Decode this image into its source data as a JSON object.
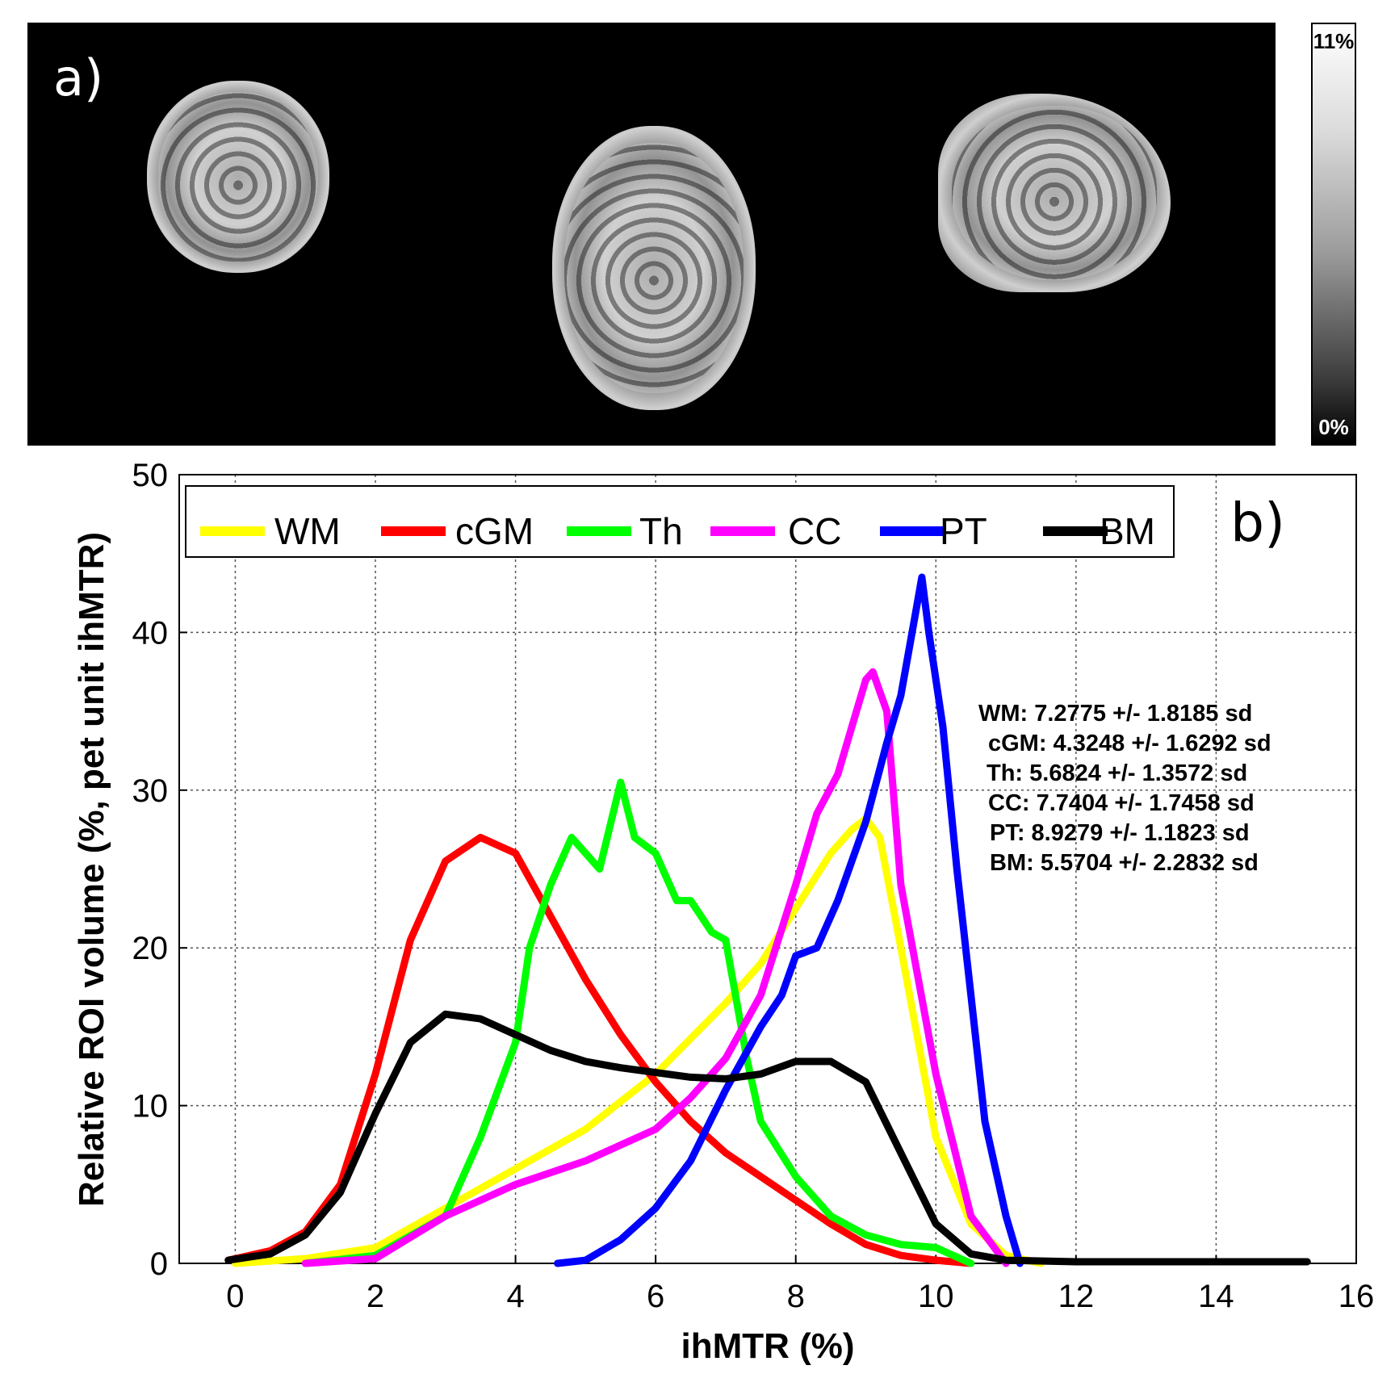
{
  "panel_a": {
    "label": "a)",
    "colorbar_max": "11%",
    "colorbar_min": "0%"
  },
  "chart_data": {
    "type": "line",
    "panel_label": "b)",
    "xlabel": "ihMTR (%)",
    "ylabel": "Relative ROI volume (%, pet unit ihMTR)",
    "xlim": [
      -0.8,
      16
    ],
    "ylim": [
      0,
      50
    ],
    "xticks": [
      0,
      2,
      4,
      6,
      8,
      10,
      12,
      14,
      16
    ],
    "yticks": [
      0,
      10,
      20,
      30,
      40,
      50
    ],
    "grid": true,
    "legend_position": "top",
    "series": [
      {
        "name": "WM",
        "color": "#ffff00",
        "x": [
          0,
          1,
          2,
          3,
          4,
          5,
          6,
          7,
          7.5,
          8,
          8.5,
          8.8,
          9.0,
          9.2,
          9.5,
          10,
          10.5,
          11,
          11.5
        ],
        "y": [
          0,
          0.3,
          1,
          3.5,
          6,
          8.5,
          12,
          16.5,
          19,
          22.5,
          26,
          27.5,
          28.2,
          27,
          20,
          8,
          2.5,
          0.5,
          0
        ]
      },
      {
        "name": "cGM",
        "color": "#ff0000",
        "x": [
          -0.1,
          0.5,
          1,
          1.5,
          2,
          2.5,
          3,
          3.5,
          4,
          4.5,
          5,
          5.5,
          6,
          6.5,
          7,
          7.5,
          8,
          8.5,
          9,
          9.5,
          10,
          10.5
        ],
        "y": [
          0.2,
          0.8,
          2,
          5,
          12,
          20.5,
          25.5,
          27,
          26,
          22,
          18,
          14.5,
          11.5,
          9,
          7,
          5.5,
          4,
          2.5,
          1.2,
          0.5,
          0.2,
          0
        ]
      },
      {
        "name": "Th",
        "color": "#00ff00",
        "x": [
          1,
          2,
          3,
          3.5,
          4,
          4.2,
          4.5,
          4.8,
          5,
          5.2,
          5.5,
          5.7,
          6,
          6.3,
          6.5,
          6.8,
          7,
          7.3,
          7.5,
          8,
          8.5,
          9,
          9.5,
          10,
          10.5
        ],
        "y": [
          0,
          0.5,
          3,
          8,
          14,
          20,
          24,
          27,
          26,
          25,
          30.5,
          27,
          26,
          23,
          23,
          21,
          20.5,
          13,
          9,
          5.5,
          3,
          1.8,
          1.2,
          1,
          0
        ]
      },
      {
        "name": "CC",
        "color": "#ff00ff",
        "x": [
          1,
          2,
          3,
          4,
          5,
          6,
          6.5,
          7,
          7.5,
          8,
          8.3,
          8.6,
          8.8,
          9.0,
          9.1,
          9.3,
          9.5,
          10,
          10.5,
          11
        ],
        "y": [
          0,
          0.3,
          3,
          5,
          6.5,
          8.5,
          10.5,
          13,
          17,
          24,
          28.5,
          31,
          34,
          37,
          37.5,
          35,
          24,
          12,
          3,
          0
        ]
      },
      {
        "name": "PT",
        "color": "#0000ff",
        "x": [
          4.6,
          5,
          5.5,
          6,
          6.5,
          7,
          7.5,
          7.8,
          8,
          8.3,
          8.6,
          9,
          9.3,
          9.5,
          9.7,
          9.8,
          9.9,
          10.1,
          10.3,
          10.5,
          10.7,
          11,
          11.2
        ],
        "y": [
          0,
          0.2,
          1.5,
          3.5,
          6.5,
          11,
          15,
          17,
          19.5,
          20,
          23,
          28,
          33,
          36,
          41,
          43.5,
          40,
          34,
          25,
          17,
          9,
          3,
          0
        ]
      },
      {
        "name": "BM",
        "color": "#000000",
        "x": [
          -0.1,
          0.5,
          1,
          1.5,
          2,
          2.5,
          3,
          3.5,
          4,
          4.5,
          5,
          5.5,
          6,
          6.5,
          7,
          7.5,
          8,
          8.5,
          9,
          9.5,
          10,
          10.5,
          11,
          12,
          13,
          14,
          15.3
        ],
        "y": [
          0.2,
          0.6,
          1.8,
          4.5,
          9.5,
          14,
          15.8,
          15.5,
          14.5,
          13.5,
          12.8,
          12.4,
          12.1,
          11.8,
          11.7,
          12,
          12.8,
          12.8,
          11.5,
          7,
          2.5,
          0.6,
          0.2,
          0.1,
          0.1,
          0.1,
          0.1
        ]
      }
    ],
    "annotations": [
      "WM: 7.2775 +/- 1.8185 sd",
      "cGM: 4.3248 +/- 1.6292 sd",
      "Th: 5.6824 +/- 1.3572 sd",
      "CC: 7.7404 +/- 1.7458 sd",
      "PT: 8.9279 +/- 1.1823 sd",
      "BM: 5.5704 +/- 2.2832 sd"
    ]
  }
}
